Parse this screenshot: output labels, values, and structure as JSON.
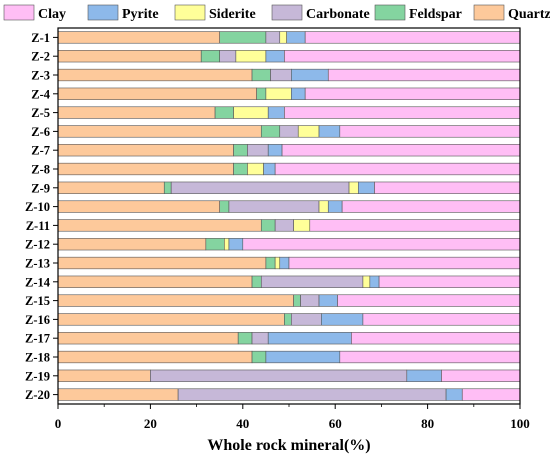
{
  "chart_data": {
    "type": "bar",
    "orientation": "horizontal",
    "stacked": true,
    "title": "",
    "xlabel": "Whole rock mineral(%)",
    "ylabel": "",
    "xlim": [
      0,
      100
    ],
    "xticks": [
      0,
      20,
      40,
      60,
      80,
      100
    ],
    "grid": false,
    "legend_position": "top",
    "categories": [
      "Z-1",
      "Z-2",
      "Z-3",
      "Z-4",
      "Z-5",
      "Z-6",
      "Z-7",
      "Z-8",
      "Z-9",
      "Z-10",
      "Z-11",
      "Z-12",
      "Z-13",
      "Z-14",
      "Z-15",
      "Z-16",
      "Z-17",
      "Z-18",
      "Z-19",
      "Z-20"
    ],
    "series": [
      {
        "name": "Quartz",
        "color": "#FDC99B",
        "values": [
          35,
          31,
          42,
          43,
          34,
          44,
          38,
          38,
          23,
          35,
          44,
          32,
          45,
          42,
          51,
          49,
          39,
          42,
          20,
          26
        ]
      },
      {
        "name": "Feldspar",
        "color": "#84D4A0",
        "values": [
          10,
          4,
          4,
          2,
          4,
          4,
          3,
          3,
          1.5,
          2,
          3,
          4,
          2,
          2,
          1.5,
          1.5,
          3,
          3,
          0,
          0
        ]
      },
      {
        "name": "Carbonate",
        "color": "#C6B8D8",
        "values": [
          3,
          3.5,
          4.5,
          0,
          0,
          4,
          4.5,
          0,
          38.5,
          19.5,
          4,
          0,
          0,
          22,
          4,
          6.5,
          3.5,
          0,
          55.5,
          58
        ]
      },
      {
        "name": "Siderite",
        "color": "#FFFF99",
        "values": [
          1.5,
          6.5,
          0,
          5.5,
          7.5,
          4.5,
          0,
          3.5,
          2,
          2,
          3.5,
          1,
          1,
          1.5,
          0,
          0,
          0,
          0,
          0,
          0
        ]
      },
      {
        "name": "Pyrite",
        "color": "#8DB9EA",
        "values": [
          4,
          4,
          8,
          3,
          3.5,
          4.5,
          3,
          2.5,
          3.5,
          3,
          0,
          3,
          2,
          2,
          4,
          9,
          18,
          16,
          7.5,
          3.5
        ]
      },
      {
        "name": "Clay",
        "color": "#FFBEF5",
        "values": [
          46.5,
          51,
          41.5,
          46.5,
          51,
          39,
          51.5,
          53,
          31.5,
          38.5,
          45.5,
          60,
          50,
          30.5,
          39.5,
          34,
          36.5,
          39,
          17,
          12.5
        ]
      }
    ],
    "legend_order": [
      "Clay",
      "Pyrite",
      "Siderite",
      "Carbonate",
      "Feldspar",
      "Quartz"
    ]
  }
}
